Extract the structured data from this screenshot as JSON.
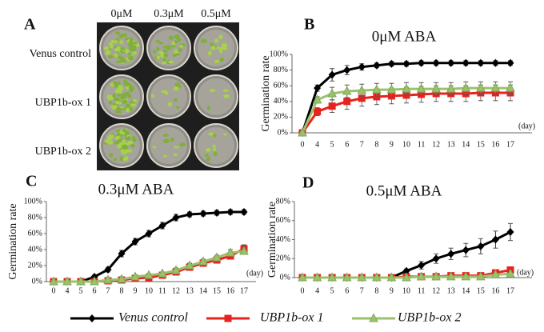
{
  "panel_a": {
    "label": "A",
    "columns": [
      "0μM",
      "0.3μM",
      "0.5μM"
    ],
    "rows": [
      "Venus control",
      "UBP1b-ox 1",
      "UBP1b-ox 2"
    ]
  },
  "chart_data": [
    {
      "type": "line",
      "panel": "B",
      "title": "0μM ABA",
      "y_label": "Germination rate",
      "x_unit": "(day)",
      "categories": [
        0,
        4,
        5,
        6,
        7,
        8,
        9,
        10,
        11,
        12,
        13,
        14,
        15,
        16,
        17
      ],
      "ylim": [
        0,
        100
      ],
      "yticks": [
        {
          "value": 0,
          "label": "0%"
        },
        {
          "value": 20,
          "label": "20%"
        },
        {
          "value": 40,
          "label": "40%"
        },
        {
          "value": 60,
          "label": "60%"
        },
        {
          "value": 80,
          "label": "80%"
        },
        {
          "value": 100,
          "label": "100%"
        }
      ],
      "series": [
        {
          "name": "Venus control",
          "color": "#000000",
          "marker": "diamond",
          "values": [
            0,
            57,
            74,
            80,
            84,
            86,
            88,
            88,
            89,
            89,
            89,
            89,
            89,
            89,
            89
          ],
          "errors": [
            0,
            4,
            8,
            6,
            4,
            3,
            3,
            3,
            3,
            3,
            3,
            3,
            3,
            3,
            3
          ]
        },
        {
          "name": "UBP1b-ox 1",
          "color": "#e8221e",
          "marker": "square",
          "values": [
            0,
            27,
            34,
            40,
            44,
            46,
            47,
            48,
            49,
            50,
            50,
            50,
            51,
            51,
            51
          ],
          "errors": [
            0,
            5,
            8,
            10,
            10,
            10,
            10,
            10,
            10,
            10,
            10,
            10,
            10,
            10,
            10
          ]
        },
        {
          "name": "UBP1b-ox 2",
          "color": "#9bc26b",
          "marker": "triangle",
          "values": [
            0,
            42,
            50,
            53,
            54,
            55,
            55,
            56,
            56,
            56,
            56,
            57,
            57,
            57,
            57
          ],
          "errors": [
            0,
            4,
            8,
            8,
            8,
            8,
            8,
            8,
            8,
            8,
            8,
            8,
            8,
            8,
            8
          ]
        }
      ]
    },
    {
      "type": "line",
      "panel": "C",
      "title": "0.3μM ABA",
      "y_label": "Germination rate",
      "x_unit": "(day)",
      "categories": [
        0,
        4,
        5,
        6,
        7,
        8,
        9,
        10,
        11,
        12,
        13,
        14,
        15,
        16,
        17
      ],
      "ylim": [
        0,
        100
      ],
      "yticks": [
        {
          "value": 0,
          "label": "0%"
        },
        {
          "value": 20,
          "label": "20%"
        },
        {
          "value": 40,
          "label": "40%"
        },
        {
          "value": 60,
          "label": "60%"
        },
        {
          "value": 80,
          "label": "80%"
        },
        {
          "value": 100,
          "label": "100%"
        }
      ],
      "series": [
        {
          "name": "Venus control",
          "color": "#000000",
          "marker": "diamond",
          "values": [
            0,
            0,
            0,
            6,
            15,
            35,
            50,
            60,
            70,
            80,
            84,
            85,
            86,
            87,
            87
          ],
          "errors": [
            0,
            0,
            0,
            2,
            3,
            4,
            4,
            4,
            4,
            4,
            3,
            3,
            3,
            3,
            3
          ]
        },
        {
          "name": "UBP1b-ox 1",
          "color": "#e8221e",
          "marker": "square",
          "values": [
            0,
            0,
            0,
            0,
            1,
            2,
            4,
            5,
            8,
            12,
            18,
            23,
            27,
            32,
            41
          ],
          "errors": [
            0,
            0,
            0,
            0,
            1,
            1,
            2,
            2,
            2,
            2,
            3,
            3,
            3,
            4,
            5
          ]
        },
        {
          "name": "UBP1b-ox 2",
          "color": "#9bc26b",
          "marker": "triangle",
          "values": [
            0,
            0,
            0,
            0,
            2,
            3,
            6,
            8,
            10,
            14,
            20,
            25,
            30,
            36,
            38
          ],
          "errors": [
            0,
            0,
            0,
            0,
            1,
            1,
            2,
            2,
            2,
            3,
            3,
            3,
            3,
            4,
            4
          ]
        }
      ]
    },
    {
      "type": "line",
      "panel": "D",
      "title": "0.5μM ABA",
      "y_label": "Germination rate",
      "x_unit": "(day)",
      "categories": [
        0,
        4,
        5,
        6,
        7,
        8,
        9,
        10,
        11,
        12,
        13,
        14,
        15,
        16,
        17
      ],
      "ylim": [
        0,
        80
      ],
      "yticks": [
        {
          "value": 0,
          "label": "0%"
        },
        {
          "value": 20,
          "label": "20%"
        },
        {
          "value": 40,
          "label": "40%"
        },
        {
          "value": 60,
          "label": "60%"
        },
        {
          "value": 80,
          "label": "80%"
        }
      ],
      "series": [
        {
          "name": "Venus control",
          "color": "#000000",
          "marker": "diamond",
          "values": [
            0,
            0,
            0,
            0,
            0,
            0,
            0,
            7,
            13,
            20,
            25,
            29,
            33,
            40,
            48
          ],
          "errors": [
            0,
            0,
            0,
            0,
            0,
            0,
            0,
            2,
            4,
            5,
            6,
            7,
            8,
            9,
            9
          ]
        },
        {
          "name": "UBP1b-ox 1",
          "color": "#e8221e",
          "marker": "square",
          "values": [
            0,
            0,
            0,
            0,
            0,
            0,
            0,
            1,
            1,
            1,
            2,
            2,
            2,
            5,
            8
          ],
          "errors": [
            0,
            0,
            0,
            0,
            0,
            0,
            0,
            1,
            1,
            1,
            1,
            1,
            1,
            2,
            3
          ]
        },
        {
          "name": "UBP1b-ox 2",
          "color": "#9bc26b",
          "marker": "triangle",
          "values": [
            0,
            0,
            0,
            0,
            0,
            0,
            0,
            0,
            1,
            1,
            1,
            1,
            1,
            3,
            4
          ],
          "errors": [
            0,
            0,
            0,
            0,
            0,
            0,
            0,
            1,
            1,
            1,
            1,
            1,
            1,
            1,
            2
          ]
        }
      ]
    }
  ]
}
